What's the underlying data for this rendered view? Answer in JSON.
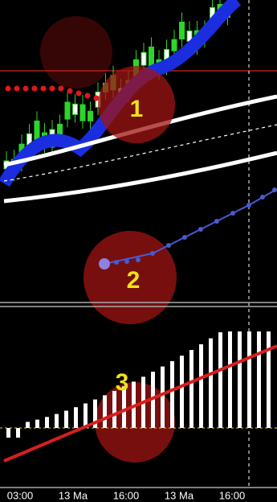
{
  "annotations": [
    "1",
    "2",
    "3"
  ],
  "x_axis_labels": [
    "03:00",
    "13 Ma",
    "16:00",
    "13 Ma",
    "16:00"
  ]
}
